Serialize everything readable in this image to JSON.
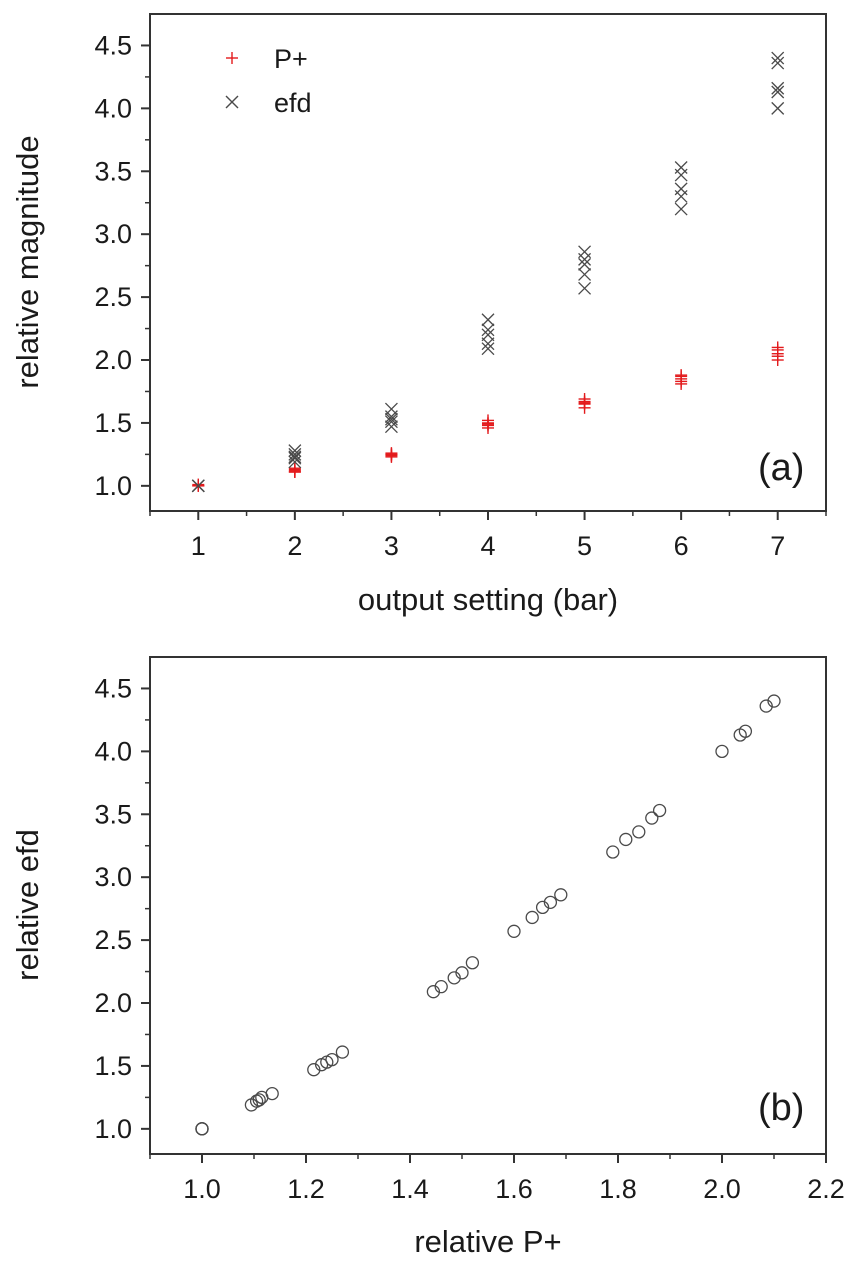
{
  "chart_data": [
    {
      "type": "scatter",
      "panel_label": "(a)",
      "xlabel": "output setting (bar)",
      "ylabel": "relative magnitude",
      "xlim": [
        0.5,
        7.5
      ],
      "ylim": [
        0.8,
        4.75
      ],
      "x_ticks": [
        1,
        2,
        3,
        4,
        5,
        6,
        7
      ],
      "y_ticks": [
        1.0,
        1.5,
        2.0,
        2.5,
        3.0,
        3.5,
        4.0,
        4.5
      ],
      "x_tick_labels": [
        "1",
        "2",
        "3",
        "4",
        "5",
        "6",
        "7"
      ],
      "y_tick_labels": [
        "1.0",
        "1.5",
        "2.0",
        "2.5",
        "3.0",
        "3.5",
        "4.0",
        "4.5"
      ],
      "legend": {
        "position": "top-left",
        "entries": [
          "P+",
          "efd"
        ]
      },
      "series": [
        {
          "name": "P+",
          "marker": "plus",
          "color": "#e31a1c",
          "points": [
            [
              1,
              1.0
            ],
            [
              1,
              1.01
            ],
            [
              1,
              1.0
            ],
            [
              2,
              1.11
            ],
            [
              2,
              1.12
            ],
            [
              2,
              1.13
            ],
            [
              2,
              1.11
            ],
            [
              2,
              1.14
            ],
            [
              3,
              1.23
            ],
            [
              3,
              1.24
            ],
            [
              3,
              1.25
            ],
            [
              3,
              1.26
            ],
            [
              3,
              1.25
            ],
            [
              4,
              1.46
            ],
            [
              4,
              1.48
            ],
            [
              4,
              1.5
            ],
            [
              4,
              1.52
            ],
            [
              4,
              1.49
            ],
            [
              5,
              1.62
            ],
            [
              5,
              1.65
            ],
            [
              5,
              1.67
            ],
            [
              5,
              1.69
            ],
            [
              5,
              1.66
            ],
            [
              6,
              1.81
            ],
            [
              6,
              1.83
            ],
            [
              6,
              1.85
            ],
            [
              6,
              1.87
            ],
            [
              6,
              1.88
            ],
            [
              7,
              2.0
            ],
            [
              7,
              2.03
            ],
            [
              7,
              2.05
            ],
            [
              7,
              2.08
            ],
            [
              7,
              2.1
            ]
          ]
        },
        {
          "name": "efd",
          "marker": "cross",
          "color": "#4a4a4a",
          "points": [
            [
              1,
              1.0
            ],
            [
              1,
              1.0
            ],
            [
              1,
              1.0
            ],
            [
              2,
              1.19
            ],
            [
              2,
              1.22
            ],
            [
              2,
              1.23
            ],
            [
              2,
              1.25
            ],
            [
              2,
              1.28
            ],
            [
              3,
              1.47
            ],
            [
              3,
              1.51
            ],
            [
              3,
              1.53
            ],
            [
              3,
              1.55
            ],
            [
              3,
              1.61
            ],
            [
              4,
              2.09
            ],
            [
              4,
              2.13
            ],
            [
              4,
              2.2
            ],
            [
              4,
              2.24
            ],
            [
              4,
              2.32
            ],
            [
              5,
              2.57
            ],
            [
              5,
              2.68
            ],
            [
              5,
              2.76
            ],
            [
              5,
              2.8
            ],
            [
              5,
              2.86
            ],
            [
              6,
              3.2
            ],
            [
              6,
              3.3
            ],
            [
              6,
              3.36
            ],
            [
              6,
              3.47
            ],
            [
              6,
              3.53
            ],
            [
              7,
              4.0
            ],
            [
              7,
              4.13
            ],
            [
              7,
              4.16
            ],
            [
              7,
              4.36
            ],
            [
              7,
              4.4
            ]
          ]
        }
      ]
    },
    {
      "type": "scatter",
      "panel_label": "(b)",
      "xlabel": "relative P+",
      "ylabel": "relative efd",
      "xlim": [
        0.9,
        2.2
      ],
      "ylim": [
        0.8,
        4.75
      ],
      "x_ticks": [
        1.0,
        1.2,
        1.4,
        1.6,
        1.8,
        2.0,
        2.2
      ],
      "y_ticks": [
        1.0,
        1.5,
        2.0,
        2.5,
        3.0,
        3.5,
        4.0,
        4.5
      ],
      "x_tick_labels": [
        "1.0",
        "1.2",
        "1.4",
        "1.6",
        "1.8",
        "2.0",
        "2.2"
      ],
      "y_tick_labels": [
        "1.0",
        "1.5",
        "2.0",
        "2.5",
        "3.0",
        "3.5",
        "4.0",
        "4.5"
      ],
      "series": [
        {
          "name": "relative efd vs relative P+",
          "marker": "circle",
          "color": "#4a4a4a",
          "points": [
            [
              1.0,
              1.0
            ],
            [
              1.0,
              1.0
            ],
            [
              1.0,
              1.0
            ],
            [
              1.095,
              1.19
            ],
            [
              1.105,
              1.22
            ],
            [
              1.11,
              1.23
            ],
            [
              1.115,
              1.25
            ],
            [
              1.135,
              1.28
            ],
            [
              1.215,
              1.47
            ],
            [
              1.23,
              1.51
            ],
            [
              1.24,
              1.53
            ],
            [
              1.25,
              1.55
            ],
            [
              1.27,
              1.61
            ],
            [
              1.445,
              2.09
            ],
            [
              1.46,
              2.13
            ],
            [
              1.485,
              2.2
            ],
            [
              1.5,
              2.24
            ],
            [
              1.52,
              2.32
            ],
            [
              1.6,
              2.57
            ],
            [
              1.635,
              2.68
            ],
            [
              1.655,
              2.76
            ],
            [
              1.67,
              2.8
            ],
            [
              1.69,
              2.86
            ],
            [
              1.79,
              3.2
            ],
            [
              1.815,
              3.3
            ],
            [
              1.84,
              3.36
            ],
            [
              1.865,
              3.47
            ],
            [
              1.88,
              3.53
            ],
            [
              2.0,
              4.0
            ],
            [
              2.035,
              4.13
            ],
            [
              2.045,
              4.16
            ],
            [
              2.085,
              4.36
            ],
            [
              2.1,
              4.4
            ]
          ]
        }
      ]
    }
  ]
}
